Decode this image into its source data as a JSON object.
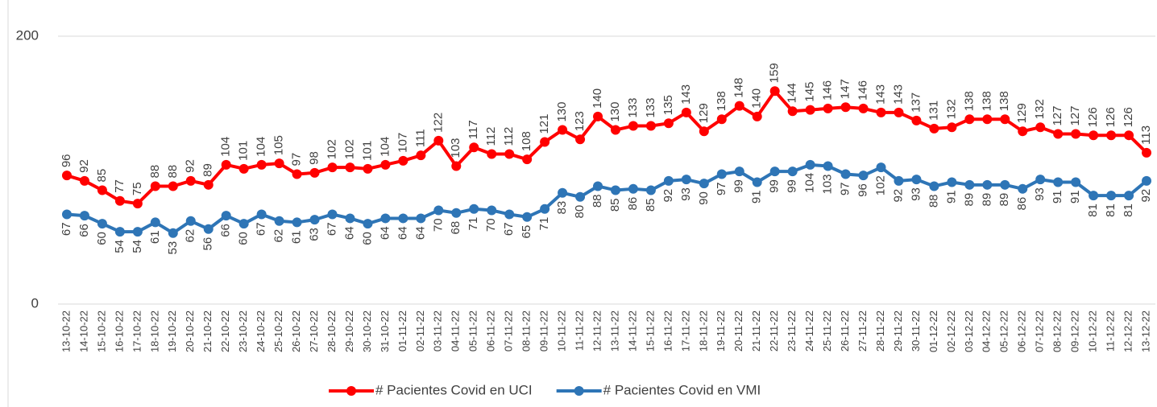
{
  "chart_data": {
    "type": "line",
    "categories": [
      "13-10-22",
      "14-10-22",
      "15-10-22",
      "16-10-22",
      "17-10-22",
      "18-10-22",
      "19-10-22",
      "20-10-22",
      "21-10-22",
      "22-10-22",
      "23-10-22",
      "24-10-22",
      "25-10-22",
      "26-10-22",
      "27-10-22",
      "28-10-22",
      "29-10-22",
      "30-10-22",
      "31-10-22",
      "01-11-22",
      "02-11-22",
      "03-11-22",
      "04-11-22",
      "05-11-22",
      "06-11-22",
      "07-11-22",
      "08-11-22",
      "09-11-22",
      "10-11-22",
      "11-11-22",
      "12-11-22",
      "13-11-22",
      "14-11-22",
      "15-11-22",
      "16-11-22",
      "17-11-22",
      "18-11-22",
      "19-11-22",
      "20-11-22",
      "21-11-22",
      "22-11-22",
      "23-11-22",
      "24-11-22",
      "25-11-22",
      "26-11-22",
      "27-11-22",
      "28-11-22",
      "29-11-22",
      "30-11-22",
      "01-12-22",
      "02-12-22",
      "03-12-22",
      "04-12-22",
      "05-12-22",
      "06-12-22",
      "07-12-22",
      "08-12-22",
      "09-12-22",
      "10-12-22",
      "11-12-22",
      "12-12-22",
      "13-12-22"
    ],
    "series": [
      {
        "name": "# Pacientes Covid en UCI",
        "color": "#ff0000",
        "values": [
          96,
          92,
          85,
          77,
          75,
          88,
          88,
          92,
          89,
          104,
          101,
          104,
          105,
          97,
          98,
          102,
          102,
          101,
          104,
          107,
          111,
          122,
          103,
          117,
          112,
          112,
          108,
          121,
          130,
          123,
          140,
          130,
          133,
          133,
          135,
          143,
          129,
          138,
          148,
          140,
          159,
          144,
          145,
          146,
          147,
          146,
          143,
          143,
          137,
          131,
          132,
          138,
          138,
          138,
          129,
          132,
          127,
          127,
          126,
          126,
          126,
          113
        ]
      },
      {
        "name": "# Pacientes Covid en VMI",
        "color": "#2e75b6",
        "values": [
          67,
          66,
          60,
          54,
          54,
          61,
          53,
          62,
          56,
          66,
          60,
          67,
          62,
          61,
          63,
          67,
          64,
          60,
          64,
          64,
          64,
          70,
          68,
          71,
          70,
          67,
          65,
          71,
          83,
          80,
          88,
          85,
          86,
          85,
          92,
          93,
          90,
          97,
          99,
          91,
          99,
          99,
          104,
          103,
          97,
          96,
          102,
          92,
          93,
          88,
          91,
          89,
          89,
          89,
          86,
          93,
          91,
          91,
          81,
          81,
          81,
          92
        ]
      }
    ],
    "ylim": [
      0,
      200
    ],
    "yticks": [
      0,
      200
    ],
    "grid": true
  }
}
